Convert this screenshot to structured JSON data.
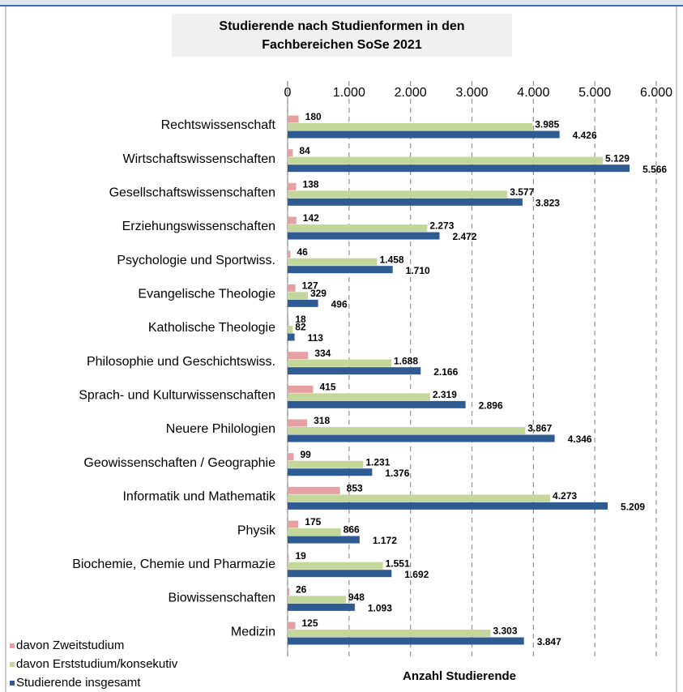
{
  "chart_data": {
    "type": "hbar",
    "title": [
      "Studierende nach Studienformen in den",
      "Fachbereichen  SoSe 2021"
    ],
    "x_label": "Anzahl Studierende",
    "categories": [
      "Rechtswissenschaft",
      "Wirtschaftswissenschaften",
      "Gesellschaftswissenschaften",
      "Erziehungswissenschaften",
      "Psychologie und Sportwiss.",
      "Evangelische Theologie",
      "Katholische Theologie",
      "Philosophie und  Geschichtswiss.",
      "Sprach- und Kulturwissenschaften",
      "Neuere Philologien",
      "Geowissenschaften / Geographie",
      "Informatik und Mathematik",
      "Physik",
      "Biochemie, Chemie und Pharmazie",
      "Biowissenschaften",
      "Medizin"
    ],
    "series": [
      {
        "name": "davon Zweitstudium",
        "color": "#e6a0a2",
        "values": [
          180,
          84,
          138,
          142,
          46,
          127,
          18,
          334,
          415,
          318,
          99,
          853,
          175,
          19,
          26,
          125
        ],
        "value_labels": [
          "180",
          "84",
          "138",
          "142",
          "46",
          "127",
          "18",
          "334",
          "415",
          "318",
          "99",
          "853",
          "175",
          "19",
          "26",
          "125"
        ]
      },
      {
        "name": "davon Erststudium/konsekutiv",
        "color": "#c4d79b",
        "values": [
          3985,
          5129,
          3577,
          2273,
          1458,
          329,
          82,
          1688,
          2319,
          3867,
          1231,
          4273,
          866,
          1551,
          948,
          3303
        ],
        "value_labels": [
          "3.985",
          "5.129",
          "3.577",
          "2.273",
          "1.458",
          "329",
          "82",
          "1.688",
          "2.319",
          "3.867",
          "1.231",
          "4.273",
          "866",
          "1.551",
          "948",
          "3.303"
        ]
      },
      {
        "name": "Studierende insgesamt",
        "color": "#2f5b93",
        "values": [
          4426,
          5566,
          3823,
          2472,
          1710,
          496,
          113,
          2166,
          2896,
          4346,
          1376,
          5209,
          1172,
          1692,
          1093,
          3847
        ],
        "value_labels": [
          "4.426",
          "5.566",
          "3.823",
          "2.472",
          "1.710",
          "496",
          "113",
          "2.166",
          "2.896",
          "4.346",
          "1.376",
          "5.209",
          "1.172",
          "1.692",
          "1.093",
          "3.847"
        ]
      }
    ],
    "xlim": [
      0,
      6000
    ],
    "xticks": [
      0,
      {
        "value": 1000,
        "label": "1.000"
      },
      {
        "value": 2000,
        "label": "2.000"
      },
      {
        "value": 3000,
        "label": "3.000"
      },
      {
        "value": 4000,
        "label": "4.000"
      },
      {
        "value": 5000,
        "label": "5.000"
      },
      {
        "value": 6000,
        "label": "6.000"
      }
    ],
    "grid": true
  }
}
